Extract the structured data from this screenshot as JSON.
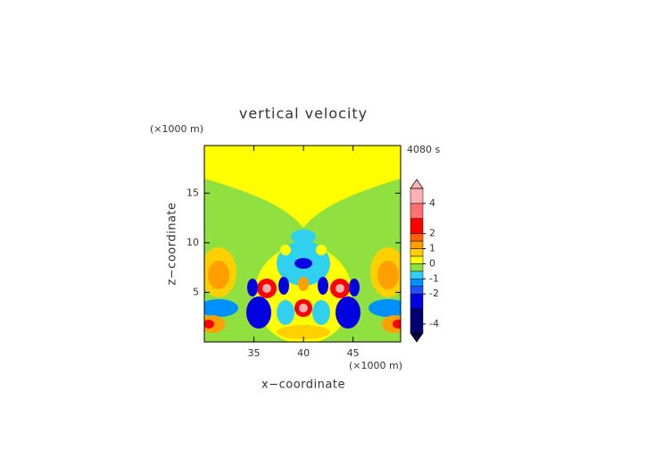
{
  "chart_data": {
    "type": "contour",
    "title": "vertical velocity",
    "x_label": "x−coordinate",
    "y_label": "z−coordinate",
    "x_unit": "(×1000 m)",
    "y_unit": "(×1000 m)",
    "time_label": "4080 s",
    "xlim": [
      30,
      49.8
    ],
    "xticks": [
      35,
      40,
      45
    ],
    "ylim": [
      0,
      19.8
    ],
    "yticks": [
      5,
      10,
      15
    ],
    "colorbar": {
      "lim": [
        -4.6,
        5
      ],
      "ticks": [
        -4,
        -2,
        -1,
        0,
        1,
        2,
        4
      ],
      "levels": [
        -4.6,
        -3,
        -2,
        -1.5,
        -1,
        -0.5,
        0,
        0.5,
        1,
        1.5,
        2,
        3,
        4,
        5
      ],
      "colors": [
        "#000070",
        "#0000e0",
        "#2050ff",
        "#0090ff",
        "#30d0f0",
        "#90e040",
        "#ffff00",
        "#ffd000",
        "#ffa000",
        "#ff6000",
        "#ff0000",
        "#ff7070",
        "#ffb0b0"
      ],
      "over_color": "#ffb0b0",
      "under_color": "#000040"
    }
  }
}
